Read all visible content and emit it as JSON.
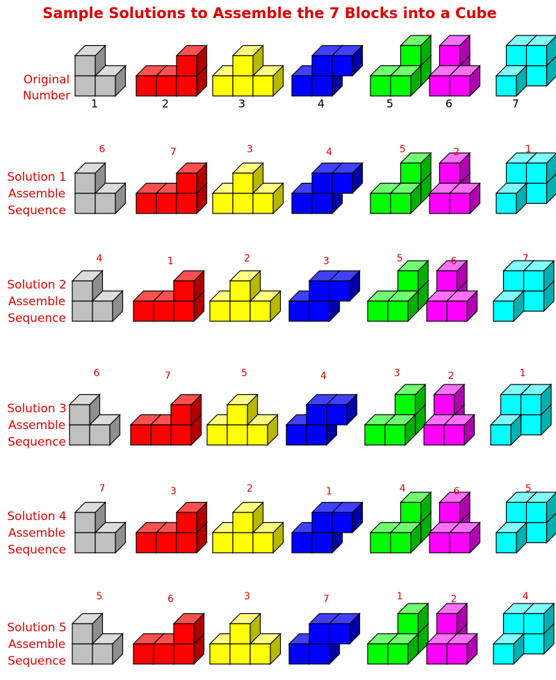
{
  "title": "Sample Solutions to Assemble the 7 Blocks into a Cube",
  "original": {
    "label": [
      "Original",
      "Number"
    ],
    "numbers": [
      1,
      2,
      3,
      4,
      5,
      6,
      7
    ]
  },
  "solutions": [
    {
      "label": [
        "Solution 1",
        "Assemble",
        "Sequence"
      ],
      "numbers": [
        6,
        7,
        3,
        4,
        5,
        2,
        1
      ]
    },
    {
      "label": [
        "Solution 2",
        "Assemble",
        "Sequence"
      ],
      "numbers": [
        4,
        1,
        2,
        3,
        5,
        6,
        7
      ]
    },
    {
      "label": [
        "Solution 3",
        "Assemble",
        "Sequence"
      ],
      "numbers": [
        6,
        7,
        5,
        4,
        3,
        2,
        1
      ]
    },
    {
      "label": [
        "Solution 4",
        "Assemble",
        "Sequence"
      ],
      "numbers": [
        7,
        3,
        2,
        1,
        4,
        6,
        5
      ]
    },
    {
      "label": [
        "Solution 5",
        "Assemble",
        "Sequence"
      ],
      "numbers": [
        5,
        6,
        3,
        7,
        1,
        2,
        4
      ]
    }
  ]
}
